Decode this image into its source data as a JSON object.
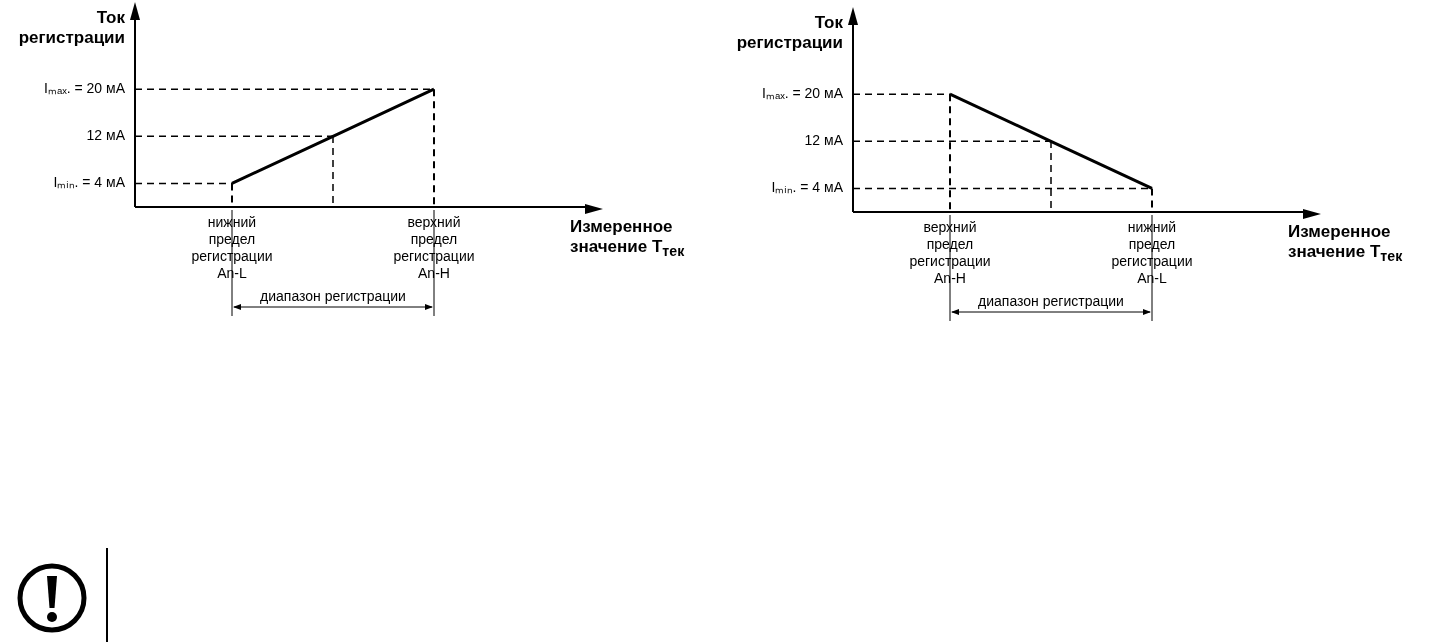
{
  "chart_data": [
    {
      "type": "line",
      "xlabel": "Измеренное значение T$_{тек}$",
      "ylabel": "Ток регистрации",
      "categories": [
        "нижний\nпредел\nрегистрации\nAn-L",
        null,
        "верхний\nпредел\nрегистрации\nAn-H"
      ],
      "series": [
        {
          "color": "#000000",
          "values": [
            4,
            12,
            20
          ]
        }
      ],
      "ylim": [
        0,
        32
      ],
      "yticks": [
        {
          "value": 4,
          "label": "Iₘᵢₙ. = 4 мА"
        },
        {
          "value": 12,
          "label": "12 мА"
        },
        {
          "value": 20,
          "label": "Iₘₐₓ. = 20 мА"
        }
      ],
      "ref_lines": [
        {
          "axis": "y",
          "value": 4,
          "line_style": "dashed"
        },
        {
          "axis": "y",
          "value": 12,
          "line_style": "dashed"
        },
        {
          "axis": "y",
          "value": 20,
          "line_style": "dashed"
        },
        {
          "axis": "x",
          "value": "нижний\nпредел\nрегистрации\nAn-L",
          "line_style": "dashed"
        },
        {
          "axis": "x",
          "value": "верхний\nпредел\nрегистрации\nAn-H",
          "line_style": "dashed"
        }
      ],
      "annotations": [
        "диапазон регистрации"
      ],
      "legend": false
    },
    {
      "type": "line",
      "xlabel": "Измеренное значение T$_{тек}$",
      "ylabel": "Ток регистрации",
      "categories": [
        "верхний\nпредел\nрегистрации\nAn-H",
        null,
        "нижний\nпредел\nрегистрации\nAn-L"
      ],
      "series": [
        {
          "color": "#000000",
          "values": [
            20,
            12,
            4
          ]
        }
      ],
      "ylim": [
        0,
        32
      ],
      "yticks": [
        {
          "value": 4,
          "label": "Iₘᵢₙ. = 4 мА"
        },
        {
          "value": 12,
          "label": "12 мА"
        },
        {
          "value": 20,
          "label": "Iₘₐₓ. = 20 мА"
        }
      ],
      "ref_lines": [
        {
          "axis": "y",
          "value": 4,
          "line_style": "dashed"
        },
        {
          "axis": "y",
          "value": 12,
          "line_style": "dashed"
        },
        {
          "axis": "y",
          "value": 20,
          "line_style": "dashed"
        },
        {
          "axis": "x",
          "value": "верхний\nпредел\nрегистрации\nAn-H",
          "line_style": "dashed"
        },
        {
          "axis": "x",
          "value": "нижний\nпредел\nрегистрации\nAn-L",
          "line_style": "dashed"
        }
      ],
      "annotations": [
        "диапазон регистрации"
      ],
      "legend": false
    }
  ]
}
